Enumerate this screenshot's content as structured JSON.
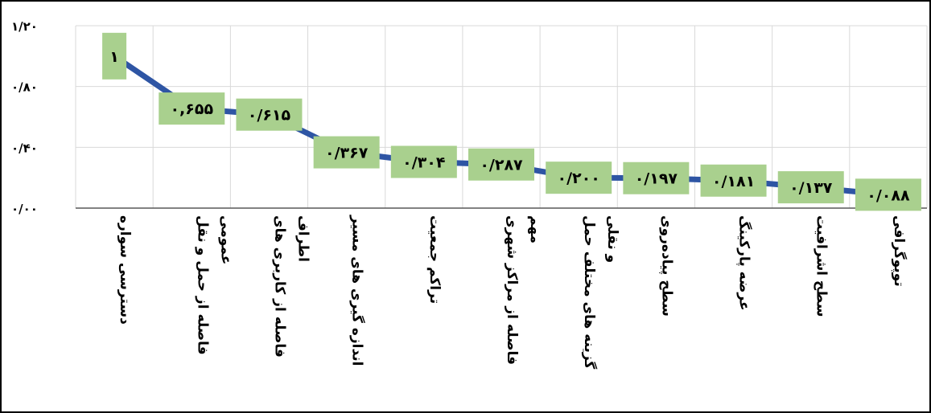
{
  "chart_data": {
    "type": "line",
    "title": "",
    "xlabel": "",
    "ylabel": "",
    "ylim": [
      0,
      1.2
    ],
    "yticks": [
      {
        "value": 0,
        "label": "۰/۰۰"
      },
      {
        "value": 0.4,
        "label": "۰/۴۰"
      },
      {
        "value": 0.8,
        "label": "۰/۸۰"
      },
      {
        "value": 1.2,
        "label": "۱/۲۰"
      }
    ],
    "grid": true,
    "legend": "none",
    "categories": [
      [
        "دسترسی سواره"
      ],
      [
        "فاصله از حمل و نقل",
        "عمومی"
      ],
      [
        "فاصله از کاربری های",
        "اطراف"
      ],
      [
        "اندازه گیری های مسیر"
      ],
      [
        "تراکم جمعیت"
      ],
      [
        "فاصله از مراکز شهری",
        "مهم"
      ],
      [
        "گزینه های مختلف حمل",
        "و نقلی"
      ],
      [
        "سطح پیاده‌روی"
      ],
      [
        "عرضه پارکینگ"
      ],
      [
        "سطح اشرافیت"
      ],
      [
        "توپوگرافی"
      ]
    ],
    "series": [
      {
        "values": [
          1,
          0.655,
          0.615,
          0.367,
          0.304,
          0.287,
          0.2,
          0.197,
          0.181,
          0.137,
          0.088
        ],
        "labels": [
          "۱",
          "۰,۶۵۵",
          "۰/۶۱۵",
          "۰/۳۶۷",
          "۰/۳۰۴",
          "۰/۲۸۷",
          "۰/۲۰۰",
          "۰/۱۹۷",
          "۰/۱۸۱",
          "۰/۱۳۷",
          "۰/۰۸۸"
        ]
      }
    ],
    "colors": {
      "line": "#2E55A4",
      "label_fill": "#A9D08E",
      "grid": "#D9D9D9",
      "axis": "#595959",
      "text": "#000000"
    }
  }
}
